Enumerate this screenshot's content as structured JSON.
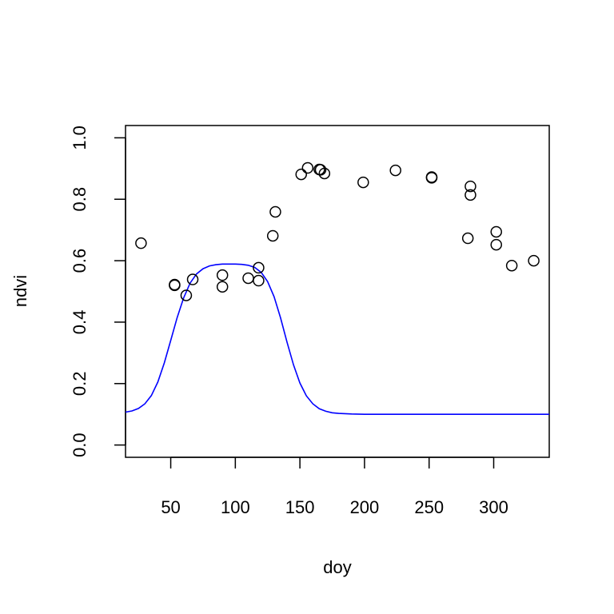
{
  "chart_data": {
    "type": "scatter",
    "title": "",
    "xlabel": "doy",
    "ylabel": "ndvi",
    "xlim": [
      15,
      343
    ],
    "ylim": [
      -0.04,
      1.04
    ],
    "x_ticks": [
      50,
      100,
      150,
      200,
      250,
      300
    ],
    "y_ticks": [
      0.0,
      0.2,
      0.4,
      0.6,
      0.8,
      1.0
    ],
    "x_tick_labels": [
      "50",
      "100",
      "150",
      "200",
      "250",
      "300"
    ],
    "y_tick_labels": [
      "0.0",
      "0.2",
      "0.4",
      "0.6",
      "0.8",
      "1.0"
    ],
    "grid": false,
    "legend": "none",
    "points_color": "#000000",
    "line_color": "#0000ff",
    "series": [
      {
        "type": "scatter",
        "x": [
          27,
          53,
          53,
          62,
          67,
          90,
          90,
          110,
          118,
          118,
          129,
          131,
          151,
          156,
          165,
          166,
          169,
          199,
          224,
          252,
          252,
          280,
          282,
          282,
          302,
          302,
          314,
          331
        ],
        "y": [
          0.657,
          0.522,
          0.52,
          0.487,
          0.539,
          0.553,
          0.515,
          0.543,
          0.577,
          0.535,
          0.681,
          0.759,
          0.881,
          0.902,
          0.897,
          0.896,
          0.884,
          0.855,
          0.894,
          0.87,
          0.872,
          0.673,
          0.842,
          0.814,
          0.694,
          0.652,
          0.584,
          0.6
        ]
      },
      {
        "type": "line",
        "x": [
          15,
          20,
          25,
          30,
          35,
          40,
          45,
          50,
          55,
          60,
          65,
          70,
          75,
          80,
          85,
          90,
          95,
          100,
          105,
          110,
          115,
          120,
          125,
          130,
          135,
          140,
          145,
          150,
          155,
          160,
          165,
          170,
          175,
          180,
          185,
          190,
          200,
          210,
          220,
          240,
          260,
          280,
          300,
          320,
          343
        ],
        "y": [
          0.107,
          0.111,
          0.119,
          0.134,
          0.161,
          0.205,
          0.267,
          0.341,
          0.415,
          0.479,
          0.527,
          0.557,
          0.574,
          0.583,
          0.587,
          0.589,
          0.589,
          0.589,
          0.588,
          0.585,
          0.578,
          0.562,
          0.532,
          0.483,
          0.414,
          0.335,
          0.261,
          0.202,
          0.16,
          0.134,
          0.118,
          0.11,
          0.105,
          0.103,
          0.102,
          0.101,
          0.1,
          0.1,
          0.1,
          0.1,
          0.1,
          0.1,
          0.1,
          0.1,
          0.1
        ]
      }
    ]
  }
}
